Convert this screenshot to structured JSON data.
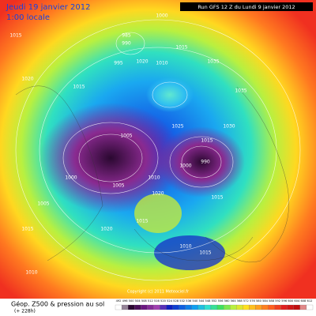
{
  "header": {
    "date": "Jeudi 19 janvier 2012",
    "time": "1:00 locale",
    "run": "Run GFS 12 Z du Lundi 9 janvier 2012"
  },
  "footer": {
    "title": "Géop. Z500 & pression au sol",
    "lead": "(+ 228h)",
    "copyright": "Copyright (c) 2011 Meteociel.fr"
  },
  "scale": {
    "ticks": [
      492,
      496,
      500,
      504,
      508,
      512,
      516,
      520,
      524,
      528,
      532,
      536,
      540,
      544,
      548,
      552,
      556,
      560,
      564,
      568,
      572,
      576,
      580,
      584,
      588,
      592,
      596,
      600,
      604,
      608,
      612
    ]
  },
  "isobars": [
    "1015",
    "1000",
    "985",
    "990",
    "995",
    "1010",
    "1020",
    "1015",
    "1015",
    "1020",
    "1035",
    "1035",
    "1030",
    "1025",
    "1015",
    "1005",
    "1000",
    "1000",
    "990",
    "1005",
    "1010",
    "1020",
    "1015",
    "1015",
    "1005",
    "1015",
    "1020",
    "1010",
    "1015",
    "1010"
  ]
}
